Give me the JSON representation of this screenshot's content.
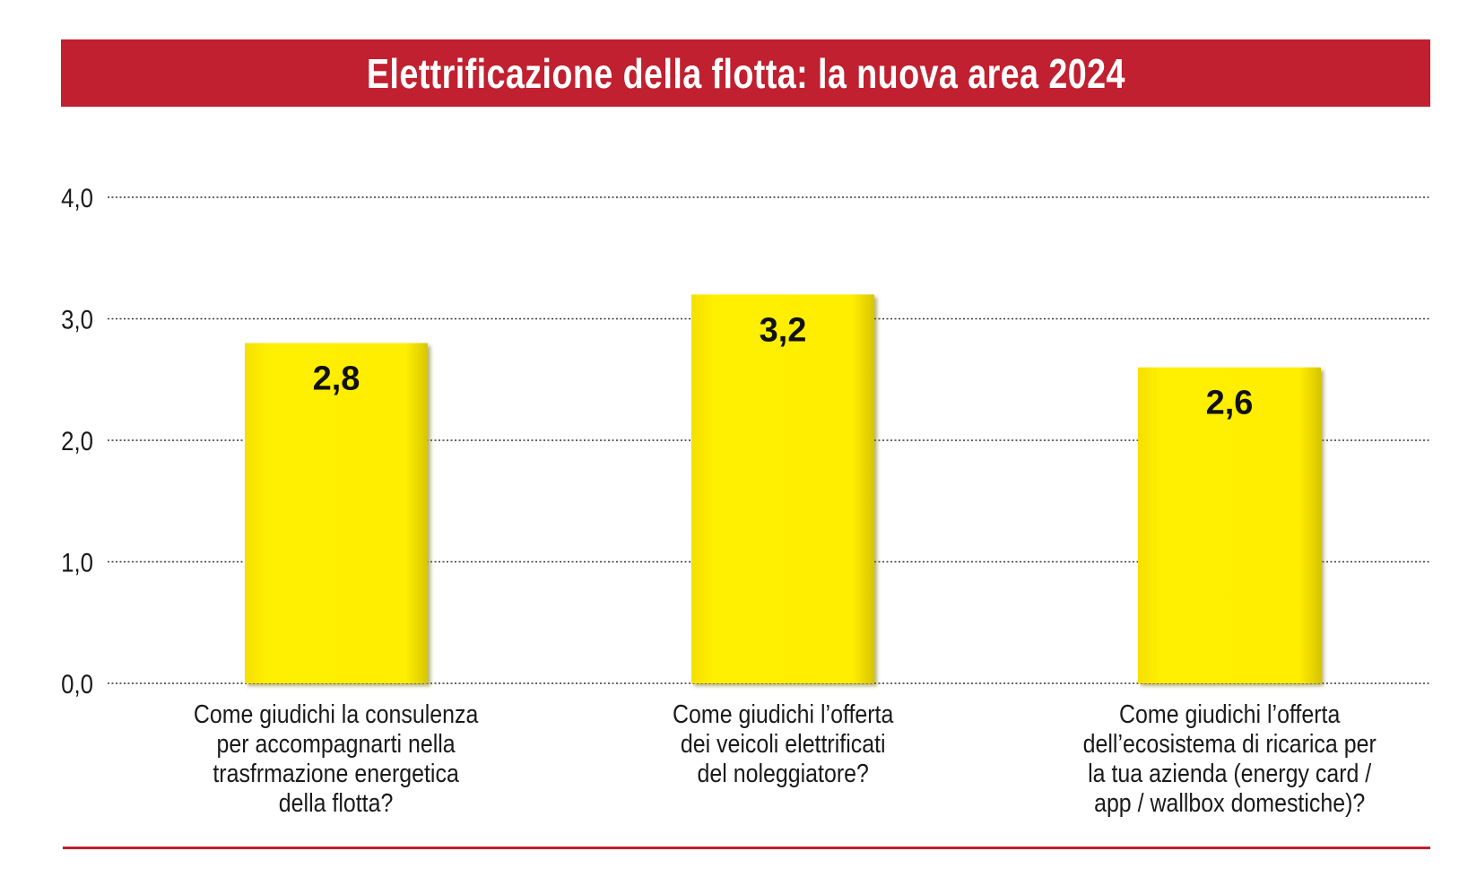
{
  "chart_data": {
    "type": "bar",
    "title": "Elettrificazione della flotta: la nuova area 2024",
    "categories": [
      "Come giudichi la consulenza\nper accompagnarti nella\ntrasfrmazione energetica\ndella flotta?",
      "Come giudichi l’offerta\ndei veicoli elettrificati\ndel noleggiatore?",
      "Come giudichi l’offerta\ndell’ecosistema di ricarica per\nla tua azienda (energy card /\napp / wallbox domestiche)?"
    ],
    "values": [
      2.8,
      3.2,
      2.6
    ],
    "data_labels": [
      "2,8",
      "3,2",
      "2,6"
    ],
    "yticks": [
      0,
      1,
      2,
      3,
      4
    ],
    "ytick_labels": [
      "0,0",
      "1,0",
      "2,0",
      "3,0",
      "4,0"
    ],
    "ylim": [
      0,
      4
    ],
    "xlabel": "",
    "ylabel": "",
    "grid": "dotted horizontal",
    "legend": "none",
    "colors": {
      "bar": "#ffec00",
      "bar_shadow": "#b9a800",
      "banner": "#c0202f",
      "grid": "#333333",
      "text": "#1a1a1a"
    }
  }
}
